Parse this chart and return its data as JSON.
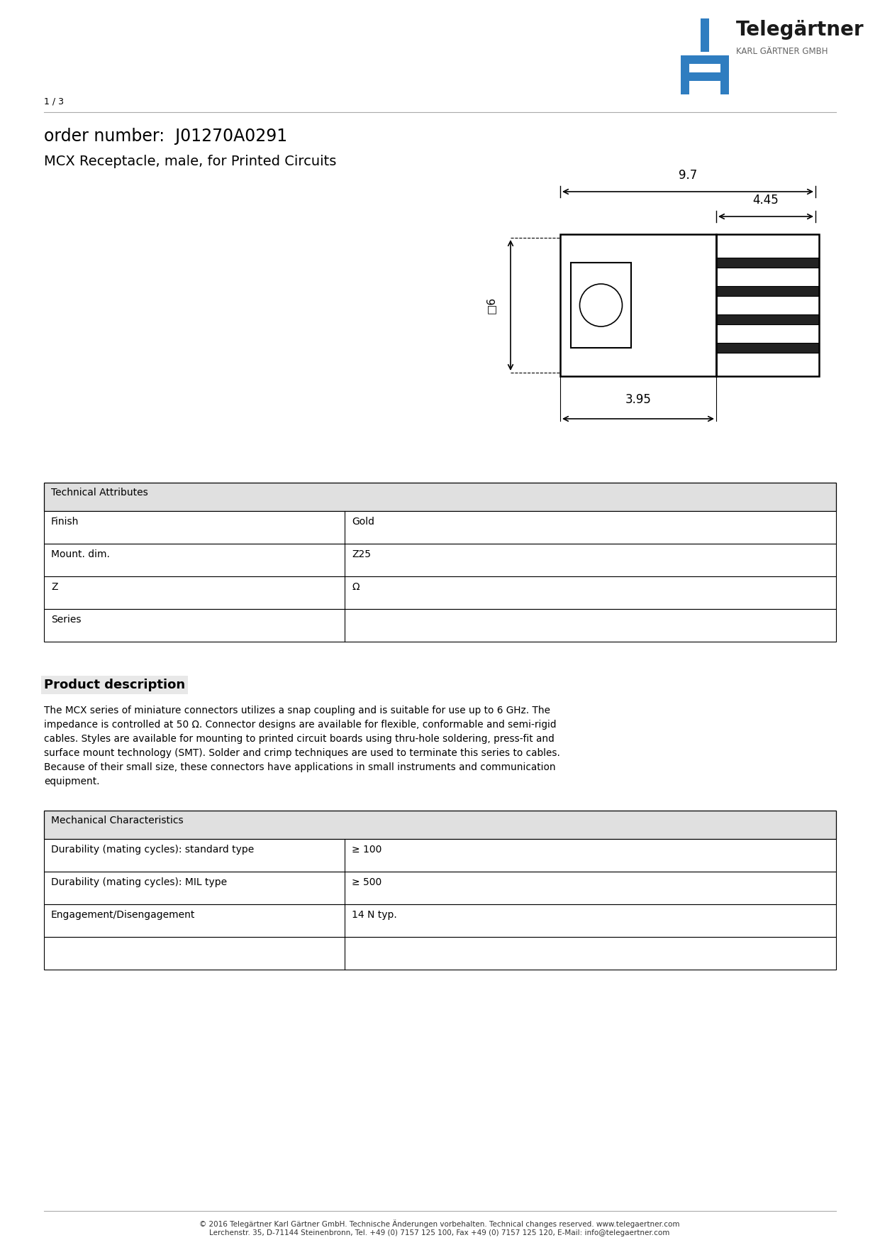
{
  "page_num": "1 / 3",
  "company_name": "Telegärtner",
  "company_sub": "KARL GÄRTNER GMBH",
  "order_label": "order number:",
  "order_number": "J01270A0291",
  "product_title": "MCX Receptacle, male, for Printed Circuits",
  "dim_97": "9.7",
  "dim_445": "4.45",
  "dim_6": "□6",
  "dim_395": "3.95",
  "tech_attr_header": "Technical Attributes",
  "tech_rows": [
    [
      "Finish",
      "Gold"
    ],
    [
      "Mount. dim.",
      "Z25"
    ],
    [
      "Z",
      "Ω"
    ],
    [
      "Series",
      ""
    ]
  ],
  "prod_desc_header": "Product description",
  "prod_desc_text": "The MCX series of miniature connectors utilizes a snap coupling and is suitable for use up to 6 GHz. The\nimpedance is controlled at 50 Ω. Connector designs are available for flexible, conformable and semi-rigid\ncables. Styles are available for mounting to printed circuit boards using thru-hole soldering, press-fit and\nsurface mount technology (SMT). Solder and crimp techniques are used to terminate this series to cables.\nBecause of their small size, these connectors have applications in small instruments and communication\nequipment.",
  "mech_attr_header": "Mechanical Characteristics",
  "mech_rows": [
    [
      "Durability (mating cycles): standard type",
      "≥ 100"
    ],
    [
      "Durability (mating cycles): MIL type",
      "≥ 500"
    ],
    [
      "Engagement/Disengagement",
      "14 N typ."
    ],
    [
      "",
      ""
    ]
  ],
  "footer_text": "© 2016 Telegärtner Karl Gärtner GmbH. Technische Änderungen vorbehalten. Technical changes reserved. www.telegaertner.com\nLerchenstr. 35, D-71144 Steinenbronn, Tel. +49 (0) 7157 125 100, Fax +49 (0) 7157 125 120, E-Mail: info@telegaertner.com",
  "logo_color_blue": "#2F7DC0",
  "bg_color": "#ffffff",
  "table_header_bg": "#e8e8e8",
  "text_color": "#000000"
}
